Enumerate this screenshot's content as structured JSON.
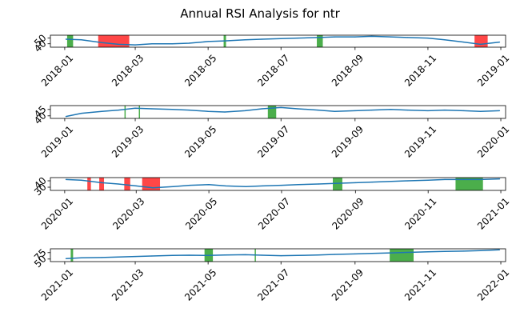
{
  "figure": {
    "title": "Annual RSI Analysis for ntr"
  },
  "colors": {
    "line": "#1f77b4",
    "buy_zone": "#2ca02c",
    "sell_zone": "#ff0000",
    "axes": "#000000"
  },
  "chart_data": [
    {
      "type": "line",
      "year": 2018,
      "xlim": [
        "2017-12-20",
        "2019-01-05"
      ],
      "ylim": [
        34,
        55
      ],
      "yticks": [
        40,
        50
      ],
      "xticks": [
        "2018-01",
        "2018-03",
        "2018-05",
        "2018-07",
        "2018-09",
        "2018-11",
        "2019-01"
      ],
      "grid": false,
      "series": [
        {
          "x": [
            "2018-01-02",
            "2018-01-15",
            "2018-02-01",
            "2018-02-15",
            "2018-03-01",
            "2018-03-15",
            "2018-04-01",
            "2018-04-15",
            "2018-05-01",
            "2018-05-15",
            "2018-06-01",
            "2018-06-15",
            "2018-07-01",
            "2018-07-15",
            "2018-08-01",
            "2018-08-15",
            "2018-09-01",
            "2018-09-15",
            "2018-10-01",
            "2018-10-15",
            "2018-11-01",
            "2018-11-15",
            "2018-12-01",
            "2018-12-15",
            "2018-12-31"
          ],
          "values": [
            48,
            47,
            42,
            39,
            38,
            40,
            40,
            41,
            44,
            45,
            47,
            48,
            49,
            50,
            51,
            52,
            52,
            53,
            52,
            51,
            50,
            47,
            43,
            39,
            43
          ]
        }
      ],
      "shaded_zones": [
        {
          "start": "2018-01-03",
          "end": "2018-01-08",
          "kind": "buy"
        },
        {
          "start": "2018-01-29",
          "end": "2018-02-24",
          "kind": "sell"
        },
        {
          "start": "2018-05-14",
          "end": "2018-05-16",
          "kind": "buy"
        },
        {
          "start": "2018-07-31",
          "end": "2018-08-05",
          "kind": "buy"
        },
        {
          "start": "2018-12-10",
          "end": "2018-12-21",
          "kind": "sell"
        }
      ]
    },
    {
      "type": "line",
      "year": 2019,
      "xlim": [
        "2018-12-20",
        "2020-01-05"
      ],
      "ylim": [
        38,
        48
      ],
      "yticks": [
        40,
        45
      ],
      "xticks": [
        "2019-01",
        "2019-03",
        "2019-05",
        "2019-07",
        "2019-09",
        "2019-11",
        "2020-01"
      ],
      "grid": false,
      "series": [
        {
          "x": [
            "2019-01-02",
            "2019-01-15",
            "2019-02-01",
            "2019-02-15",
            "2019-03-01",
            "2019-03-15",
            "2019-04-01",
            "2019-04-15",
            "2019-05-01",
            "2019-05-15",
            "2019-06-01",
            "2019-06-15",
            "2019-07-01",
            "2019-07-15",
            "2019-08-01",
            "2019-08-15",
            "2019-09-01",
            "2019-09-15",
            "2019-10-01",
            "2019-10-15",
            "2019-11-01",
            "2019-11-15",
            "2019-12-01",
            "2019-12-15",
            "2019-12-31"
          ],
          "values": [
            39.5,
            42,
            43.5,
            44.5,
            46,
            45.5,
            45,
            44.5,
            43.5,
            43,
            44,
            45.5,
            46.5,
            45.5,
            44.5,
            43.5,
            44,
            44.5,
            45,
            44.5,
            44,
            44.5,
            44,
            43.5,
            44
          ]
        }
      ],
      "shaded_zones": [
        {
          "start": "2019-02-20",
          "end": "2019-02-21",
          "kind": "buy"
        },
        {
          "start": "2019-03-04",
          "end": "2019-03-05",
          "kind": "buy"
        },
        {
          "start": "2019-06-20",
          "end": "2019-06-27",
          "kind": "buy"
        }
      ]
    },
    {
      "type": "line",
      "year": 2020,
      "xlim": [
        "2019-12-20",
        "2021-01-05"
      ],
      "ylim": [
        25,
        45
      ],
      "yticks": [
        30,
        40
      ],
      "xticks": [
        "2020-01",
        "2020-03",
        "2020-05",
        "2020-07",
        "2020-09",
        "2020-11",
        "2021-01"
      ],
      "grid": false,
      "series": [
        {
          "x": [
            "2020-01-02",
            "2020-01-15",
            "2020-02-01",
            "2020-02-15",
            "2020-03-01",
            "2020-03-15",
            "2020-04-01",
            "2020-04-15",
            "2020-05-01",
            "2020-05-15",
            "2020-06-01",
            "2020-06-15",
            "2020-07-01",
            "2020-07-15",
            "2020-08-01",
            "2020-08-15",
            "2020-09-01",
            "2020-09-15",
            "2020-10-01",
            "2020-10-15",
            "2020-11-01",
            "2020-11-15",
            "2020-12-01",
            "2020-12-15",
            "2020-12-31"
          ],
          "values": [
            42,
            41,
            37,
            35,
            32,
            29,
            31,
            33,
            34,
            32,
            31,
            32,
            33,
            34,
            35,
            36,
            37,
            38,
            39,
            40,
            41,
            42,
            42,
            42,
            43
          ]
        }
      ],
      "shaded_zones": [
        {
          "start": "2020-01-20",
          "end": "2020-01-23",
          "kind": "sell"
        },
        {
          "start": "2020-01-30",
          "end": "2020-02-03",
          "kind": "sell"
        },
        {
          "start": "2020-02-20",
          "end": "2020-02-25",
          "kind": "sell"
        },
        {
          "start": "2020-03-06",
          "end": "2020-03-21",
          "kind": "sell"
        },
        {
          "start": "2020-08-13",
          "end": "2020-08-21",
          "kind": "buy"
        },
        {
          "start": "2020-11-24",
          "end": "2020-12-17",
          "kind": "buy"
        }
      ]
    },
    {
      "type": "line",
      "year": 2021,
      "xlim": [
        "2020-12-20",
        "2022-01-05"
      ],
      "ylim": [
        40,
        90
      ],
      "yticks": [
        50,
        75
      ],
      "xticks": [
        "2021-01",
        "2021-03",
        "2021-05",
        "2021-07",
        "2021-09",
        "2021-11",
        "2022-01"
      ],
      "grid": false,
      "series": [
        {
          "x": [
            "2021-01-02",
            "2021-01-15",
            "2021-02-01",
            "2021-02-15",
            "2021-03-01",
            "2021-03-15",
            "2021-04-01",
            "2021-04-15",
            "2021-05-01",
            "2021-05-15",
            "2021-06-01",
            "2021-06-15",
            "2021-07-01",
            "2021-07-15",
            "2021-08-01",
            "2021-08-15",
            "2021-09-01",
            "2021-09-15",
            "2021-10-01",
            "2021-10-15",
            "2021-11-01",
            "2021-11-15",
            "2021-12-01",
            "2021-12-15",
            "2021-12-31"
          ],
          "values": [
            52,
            55,
            56,
            58,
            60,
            62,
            64,
            65,
            64,
            66,
            67,
            65,
            63,
            64,
            66,
            68,
            70,
            72,
            74,
            76,
            78,
            80,
            81,
            83,
            86
          ]
        }
      ],
      "shaded_zones": [
        {
          "start": "2021-01-06",
          "end": "2021-01-08",
          "kind": "buy"
        },
        {
          "start": "2021-04-28",
          "end": "2021-05-05",
          "kind": "buy"
        },
        {
          "start": "2021-06-09",
          "end": "2021-06-10",
          "kind": "buy"
        },
        {
          "start": "2021-09-30",
          "end": "2021-10-20",
          "kind": "buy"
        }
      ]
    }
  ]
}
